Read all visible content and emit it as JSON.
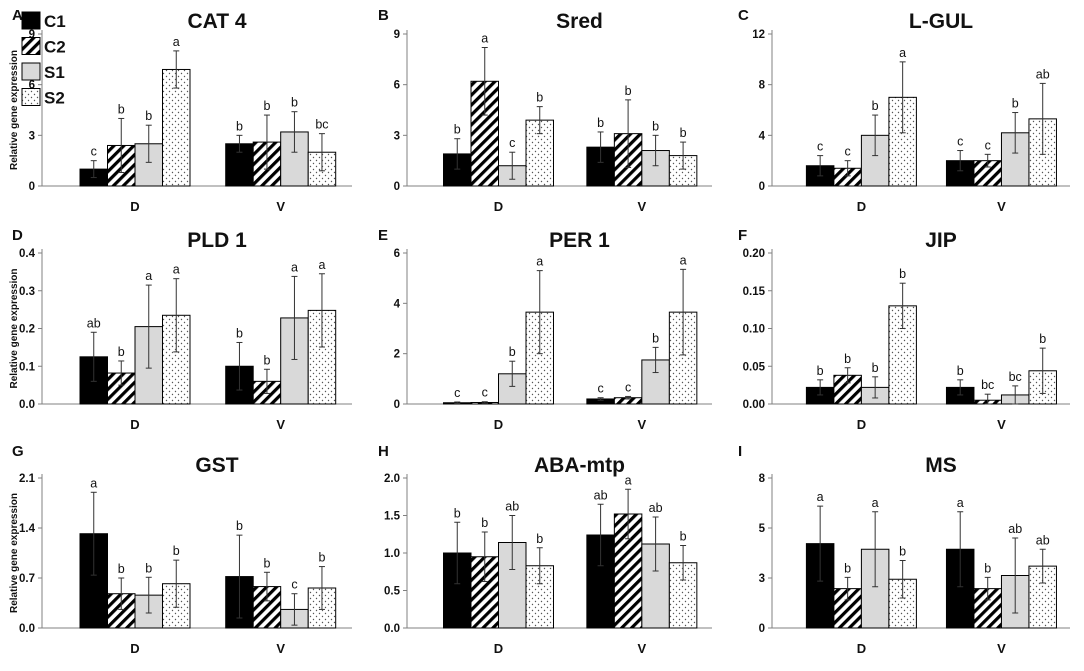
{
  "figure": {
    "legend": [
      {
        "label": "C1",
        "pattern": "solid"
      },
      {
        "label": "C2",
        "pattern": "hatch"
      },
      {
        "label": "S1",
        "pattern": "gray"
      },
      {
        "label": "S2",
        "pattern": "dots"
      }
    ],
    "y_axis_label": "Relative gene expression",
    "colors": {
      "C1": "#000000",
      "C2_stripe": "#000000",
      "S1": "#d9d9d9",
      "S2_dot": "#555555",
      "axis": "#808080",
      "text": "#111111"
    }
  },
  "chart_data": [
    {
      "type": "bar",
      "panel": "A",
      "title": "CAT 4",
      "categories": [
        "D",
        "V"
      ],
      "ylim": [
        0,
        9
      ],
      "yticks": [
        "0",
        "3",
        "6",
        "9"
      ],
      "series": [
        {
          "name": "C1",
          "values": [
            1.0,
            2.5
          ],
          "errors": [
            0.5,
            0.5
          ],
          "letters": [
            "c",
            "b"
          ]
        },
        {
          "name": "C2",
          "values": [
            2.4,
            2.6
          ],
          "errors": [
            1.6,
            1.6
          ],
          "letters": [
            "b",
            "b"
          ]
        },
        {
          "name": "S1",
          "values": [
            2.5,
            3.2
          ],
          "errors": [
            1.1,
            1.2
          ],
          "letters": [
            "b",
            "b"
          ]
        },
        {
          "name": "S2",
          "values": [
            6.9,
            2.0
          ],
          "errors": [
            1.1,
            1.1
          ],
          "letters": [
            "a",
            "bc"
          ]
        }
      ]
    },
    {
      "type": "bar",
      "panel": "B",
      "title": "Sred",
      "categories": [
        "D",
        "V"
      ],
      "ylim": [
        0,
        9
      ],
      "yticks": [
        "0",
        "3",
        "6",
        "9"
      ],
      "series": [
        {
          "name": "C1",
          "values": [
            1.9,
            2.3
          ],
          "errors": [
            0.9,
            0.9
          ],
          "letters": [
            "b",
            "b"
          ]
        },
        {
          "name": "C2",
          "values": [
            6.2,
            3.1
          ],
          "errors": [
            2.0,
            2.0
          ],
          "letters": [
            "a",
            "b"
          ]
        },
        {
          "name": "S1",
          "values": [
            1.2,
            2.1
          ],
          "errors": [
            0.8,
            0.9
          ],
          "letters": [
            "c",
            "b"
          ]
        },
        {
          "name": "S2",
          "values": [
            3.9,
            1.8
          ],
          "errors": [
            0.8,
            0.8
          ],
          "letters": [
            "b",
            "b"
          ]
        }
      ]
    },
    {
      "type": "bar",
      "panel": "C",
      "title": "L-GUL",
      "categories": [
        "D",
        "V"
      ],
      "ylim": [
        0,
        12
      ],
      "yticks": [
        "0",
        "4",
        "8",
        "12"
      ],
      "series": [
        {
          "name": "C1",
          "values": [
            1.6,
            2.0
          ],
          "errors": [
            0.8,
            0.8
          ],
          "letters": [
            "c",
            "c"
          ]
        },
        {
          "name": "C2",
          "values": [
            1.4,
            2.0
          ],
          "errors": [
            0.6,
            0.5
          ],
          "letters": [
            "c",
            "c"
          ]
        },
        {
          "name": "S1",
          "values": [
            4.0,
            4.2
          ],
          "errors": [
            1.6,
            1.6
          ],
          "letters": [
            "b",
            "b"
          ]
        },
        {
          "name": "S2",
          "values": [
            7.0,
            5.3
          ],
          "errors": [
            2.8,
            2.8
          ],
          "letters": [
            "a",
            "ab"
          ]
        }
      ]
    },
    {
      "type": "bar",
      "panel": "D",
      "title": "PLD 1",
      "categories": [
        "D",
        "V"
      ],
      "ylim": [
        0,
        0.4
      ],
      "yticks": [
        "0.0",
        "0.1",
        "0.2",
        "0.3",
        "0.4"
      ],
      "series": [
        {
          "name": "C1",
          "values": [
            0.125,
            0.1
          ],
          "errors": [
            0.065,
            0.063
          ],
          "letters": [
            "ab",
            "b"
          ]
        },
        {
          "name": "C2",
          "values": [
            0.082,
            0.06
          ],
          "errors": [
            0.032,
            0.032
          ],
          "letters": [
            "b",
            "b"
          ]
        },
        {
          "name": "S1",
          "values": [
            0.205,
            0.228
          ],
          "errors": [
            0.11,
            0.11
          ],
          "letters": [
            "a",
            "a"
          ]
        },
        {
          "name": "S2",
          "values": [
            0.235,
            0.248
          ],
          "errors": [
            0.097,
            0.097
          ],
          "letters": [
            "a",
            "a"
          ]
        }
      ]
    },
    {
      "type": "bar",
      "panel": "E",
      "title": "PER 1",
      "categories": [
        "D",
        "V"
      ],
      "ylim": [
        0,
        6
      ],
      "yticks": [
        "0",
        "2",
        "4",
        "6"
      ],
      "series": [
        {
          "name": "C1",
          "values": [
            0.05,
            0.2
          ],
          "errors": [
            0.03,
            0.05
          ],
          "letters": [
            "c",
            "c"
          ]
        },
        {
          "name": "C2",
          "values": [
            0.06,
            0.25
          ],
          "errors": [
            0.03,
            0.05
          ],
          "letters": [
            "c",
            "c"
          ]
        },
        {
          "name": "S1",
          "values": [
            1.2,
            1.75
          ],
          "errors": [
            0.5,
            0.5
          ],
          "letters": [
            "b",
            "b"
          ]
        },
        {
          "name": "S2",
          "values": [
            3.65,
            3.65
          ],
          "errors": [
            1.65,
            1.7
          ],
          "letters": [
            "a",
            "a"
          ]
        }
      ]
    },
    {
      "type": "bar",
      "panel": "F",
      "title": "JIP",
      "categories": [
        "D",
        "V"
      ],
      "ylim": [
        0,
        0.2
      ],
      "yticks": [
        "0.00",
        "0.05",
        "0.10",
        "0.15",
        "0.20"
      ],
      "series": [
        {
          "name": "C1",
          "values": [
            0.022,
            0.022
          ],
          "errors": [
            0.01,
            0.01
          ],
          "letters": [
            "b",
            "b"
          ]
        },
        {
          "name": "C2",
          "values": [
            0.038,
            0.005
          ],
          "errors": [
            0.01,
            0.008
          ],
          "letters": [
            "b",
            "bc"
          ]
        },
        {
          "name": "S1",
          "values": [
            0.022,
            0.012
          ],
          "errors": [
            0.014,
            0.012
          ],
          "letters": [
            "b",
            "bc"
          ]
        },
        {
          "name": "S2",
          "values": [
            0.13,
            0.044
          ],
          "errors": [
            0.03,
            0.03
          ],
          "letters": [
            "b",
            "b"
          ]
        }
      ]
    },
    {
      "type": "bar",
      "panel": "G",
      "title": "GST",
      "categories": [
        "D",
        "V"
      ],
      "ylim": [
        0,
        2.1
      ],
      "yticks": [
        "0.0",
        "0.7",
        "1.4",
        "2.1"
      ],
      "series": [
        {
          "name": "C1",
          "values": [
            1.32,
            0.72
          ],
          "errors": [
            0.58,
            0.58
          ],
          "letters": [
            "a",
            "b"
          ]
        },
        {
          "name": "C2",
          "values": [
            0.48,
            0.58
          ],
          "errors": [
            0.22,
            0.2
          ],
          "letters": [
            "b",
            "b"
          ]
        },
        {
          "name": "S1",
          "values": [
            0.46,
            0.26
          ],
          "errors": [
            0.25,
            0.22
          ],
          "letters": [
            "b",
            "c"
          ]
        },
        {
          "name": "S2",
          "values": [
            0.62,
            0.56
          ],
          "errors": [
            0.33,
            0.3
          ],
          "letters": [
            "b",
            "b"
          ]
        }
      ]
    },
    {
      "type": "bar",
      "panel": "H",
      "title": "ABA-mtp",
      "categories": [
        "D",
        "V"
      ],
      "ylim": [
        0,
        2.0
      ],
      "yticks": [
        "0.0",
        "0.5",
        "1.0",
        "1.5",
        "2.0"
      ],
      "series": [
        {
          "name": "C1",
          "values": [
            1.0,
            1.24
          ],
          "errors": [
            0.41,
            0.41
          ],
          "letters": [
            "b",
            "ab"
          ]
        },
        {
          "name": "C2",
          "values": [
            0.95,
            1.52
          ],
          "errors": [
            0.33,
            0.33
          ],
          "letters": [
            "b",
            "a"
          ]
        },
        {
          "name": "S1",
          "values": [
            1.14,
            1.12
          ],
          "errors": [
            0.36,
            0.36
          ],
          "letters": [
            "ab",
            "ab"
          ]
        },
        {
          "name": "S2",
          "values": [
            0.83,
            0.87
          ],
          "errors": [
            0.24,
            0.23
          ],
          "letters": [
            "b",
            "b"
          ]
        }
      ]
    },
    {
      "type": "bar",
      "panel": "I",
      "title": "MS",
      "categories": [
        "D",
        "V"
      ],
      "ylim": [
        0,
        8
      ],
      "yticks": [
        "0",
        "3",
        "5",
        "8"
      ],
      "series": [
        {
          "name": "C1",
          "values": [
            4.5,
            4.2
          ],
          "errors": [
            2.0,
            2.0
          ],
          "letters": [
            "a",
            "a"
          ]
        },
        {
          "name": "C2",
          "values": [
            2.1,
            2.1
          ],
          "errors": [
            0.6,
            0.6
          ],
          "letters": [
            "b",
            "b"
          ]
        },
        {
          "name": "S1",
          "values": [
            4.2,
            2.8
          ],
          "errors": [
            2.0,
            2.0
          ],
          "letters": [
            "a",
            "ab"
          ]
        },
        {
          "name": "S2",
          "values": [
            2.6,
            3.3
          ],
          "errors": [
            1.0,
            0.9
          ],
          "letters": [
            "b",
            "ab"
          ]
        }
      ]
    }
  ]
}
